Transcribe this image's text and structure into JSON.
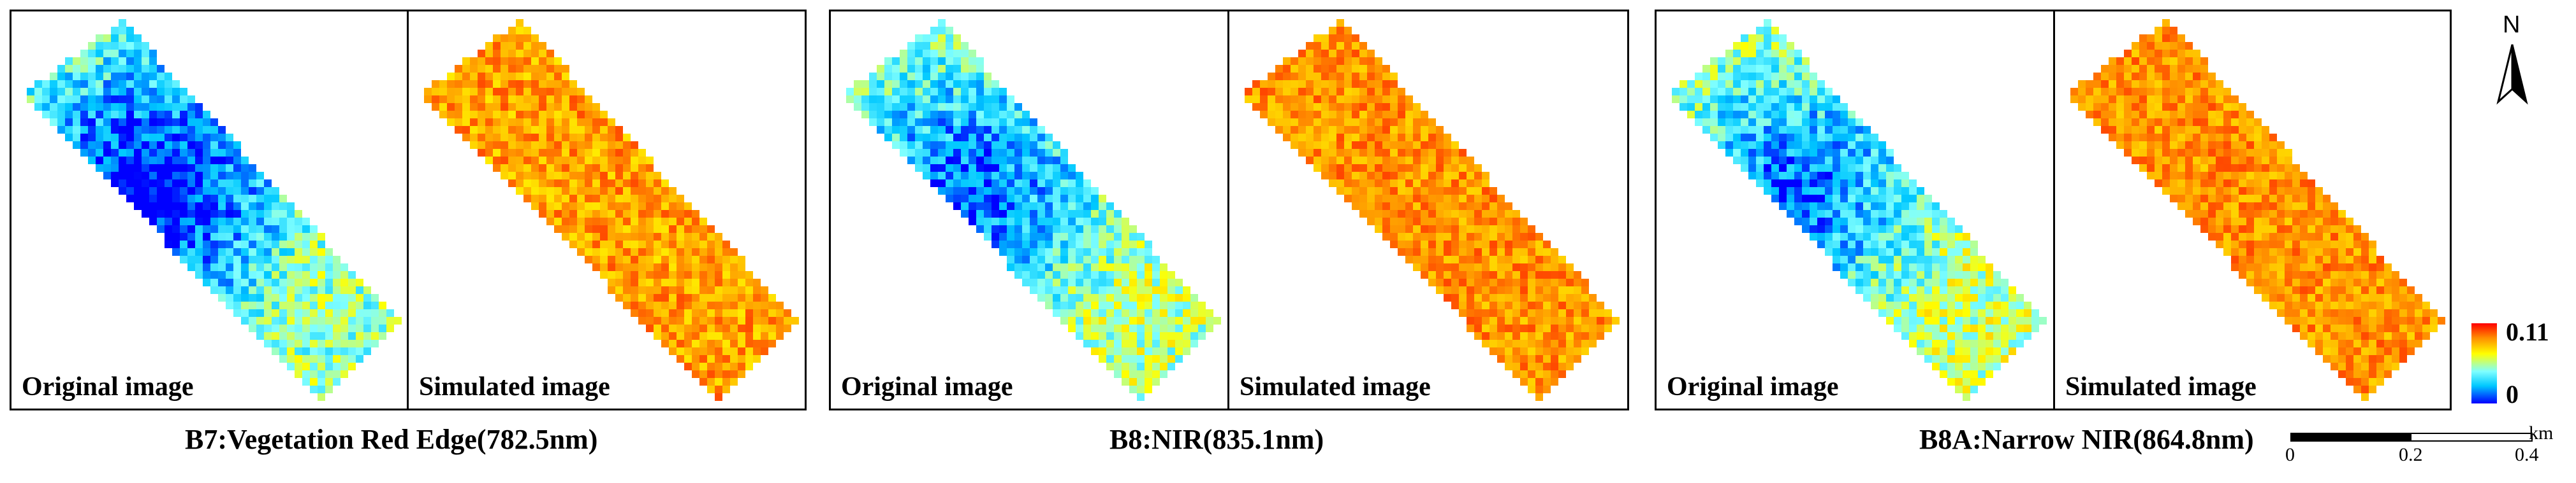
{
  "groups": [
    {
      "caption": "B7:Vegetation Red Edge(782.5nm)",
      "left_label": "Original image",
      "right_label": "Simulated image"
    },
    {
      "caption": "B8:NIR(835.1nm)",
      "left_label": "Original image",
      "right_label": "Simulated image"
    },
    {
      "caption": "B8A:Narrow NIR(864.8nm)",
      "left_label": "Original image",
      "right_label": "Simulated image"
    }
  ],
  "legend": {
    "max": "0.11",
    "min": "0"
  },
  "north_label": "N",
  "scale": {
    "ticks": [
      "0",
      "0.2",
      "0.4"
    ],
    "unit": "km"
  },
  "colors": {
    "low": "#0000ff",
    "mid": "#ffff00",
    "high": "#ff0000"
  }
}
